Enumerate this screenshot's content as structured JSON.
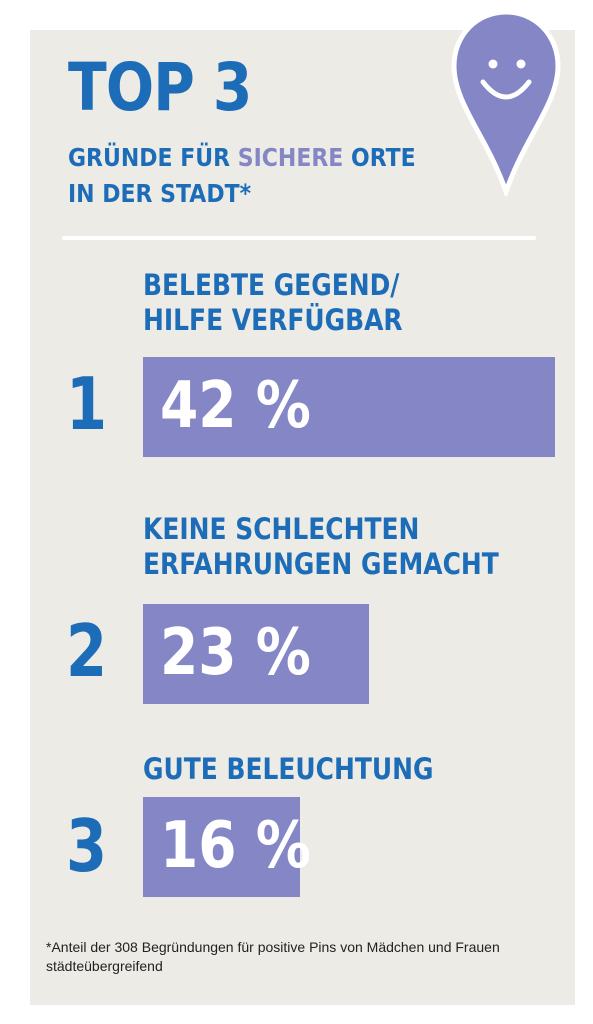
{
  "header": {
    "title": "TOP 3",
    "subtitle_line1_a": "GRÜNDE FÜR",
    "subtitle_line1_b": "SICHERE",
    "subtitle_line1_c": "ORTE",
    "subtitle_line2": "IN DER STADT*"
  },
  "colors": {
    "accent": "#8486c6",
    "blue": "#1d6cb7",
    "background": "#ecebe6"
  },
  "icon": "smiley-location-pin-icon",
  "chart_data": {
    "type": "bar",
    "orientation": "horizontal",
    "ranks": [
      "1",
      "2",
      "3"
    ],
    "categories": [
      [
        "BELEBTE GEGEND/",
        "HILFE VERFÜGBAR"
      ],
      [
        "KEINE SCHLECHTEN",
        "ERFAHRUNGEN GEMACHT"
      ],
      [
        "GUTE BELEUCHTUNG"
      ]
    ],
    "values": [
      42,
      23,
      16
    ],
    "value_labels": [
      "42 %",
      "23 %",
      "16 %"
    ],
    "unit": "%",
    "xlim": [
      0,
      42
    ]
  },
  "footnote": {
    "line1": "*Anteil der 308 Begründungen für positive Pins von Mädchen und Frauen",
    "line2": "städteübergreifend"
  }
}
